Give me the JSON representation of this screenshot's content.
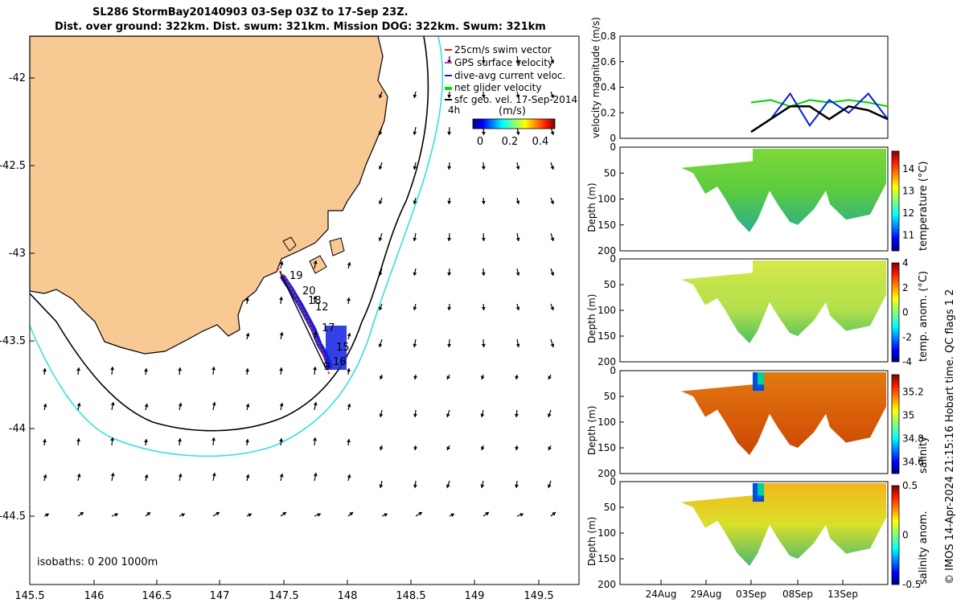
{
  "title_line1": "SL286 StormBay20140903 03-Sep 03Z to 17-Sep 23Z.",
  "title_line2": "Dist. over ground: 322km. Dist. swum: 321km. Mission DOG: 322km. Swum: 321km",
  "credit": "© IMOS 14-Apr-2024 21:15:16 Hobart time. QC flags 1  2",
  "map": {
    "xticks": [
      "145.5",
      "146",
      "146.5",
      "147",
      "147.5",
      "148",
      "148.5",
      "149",
      "149.5"
    ],
    "yticks": [
      "-42",
      "-42.5",
      "-43",
      "-43.5",
      "-44",
      "-44.5"
    ],
    "legend": [
      "25cm/s swim vector",
      "GPS surface velocity",
      "dive-avg current veloc.",
      "net glider velocity",
      "sfc geo. vel. 17-Sep-2014"
    ],
    "legend_extra": "4h",
    "colorbar_label": "(m/s)",
    "colorbar_ticks": [
      "0",
      "0.2",
      "0.4"
    ],
    "isobaths": "isobaths: 0   200  1000m",
    "day_labels": [
      "19",
      "20",
      "18",
      "12",
      "17",
      "15",
      "16",
      "9"
    ],
    "colors": {
      "land": "#F9C994",
      "coast": "#000000",
      "isobath_1000": "#33E0E0",
      "isobath_200": "#000000",
      "track_red": "#E02020",
      "track_blue": "#1020E0",
      "arrows": "#000000"
    }
  },
  "panels": {
    "xticks": [
      "24Aug",
      "29Aug",
      "03Sep",
      "08Sep",
      "13Sep"
    ],
    "depth_label": "Depth (m)",
    "depth_ticks": [
      "0",
      "50",
      "100",
      "150",
      "200"
    ]
  },
  "chart_data": [
    {
      "type": "line",
      "ylabel": "velocity magnitude (m/s)",
      "ylim": [
        0,
        0.8
      ],
      "yticks": [
        "0",
        "0.2",
        "0.4",
        "0.6",
        "0.8"
      ],
      "x": [
        "03Sep",
        "05Sep",
        "07Sep",
        "09Sep",
        "11Sep",
        "13Sep",
        "15Sep",
        "17Sep"
      ],
      "series": [
        {
          "color": "#00D000",
          "values": [
            0.28,
            0.3,
            0.25,
            0.3,
            0.28,
            0.3,
            0.28,
            0.25
          ]
        },
        {
          "color": "#0020E0",
          "values": [
            0.05,
            0.15,
            0.35,
            0.1,
            0.3,
            0.2,
            0.35,
            0.15
          ]
        },
        {
          "color": "#000000",
          "values": [
            0.05,
            0.15,
            0.25,
            0.25,
            0.15,
            0.25,
            0.22,
            0.15
          ]
        }
      ]
    },
    {
      "type": "heatmap",
      "ylabel": "Depth (m)",
      "colorbar_label": "temperature (°C)",
      "colorbar_ticks": [
        "11",
        "12",
        "13",
        "14"
      ],
      "colorbar_range": [
        10.3,
        14.8
      ],
      "ylim": [
        200,
        0
      ]
    },
    {
      "type": "heatmap",
      "ylabel": "Depth (m)",
      "colorbar_label": "temp. anom. (°C)",
      "colorbar_ticks": [
        "-4",
        "-2",
        "0",
        "2",
        "4"
      ],
      "colorbar_range": [
        -4,
        4
      ],
      "ylim": [
        200,
        0
      ]
    },
    {
      "type": "heatmap",
      "ylabel": "Depth (m)",
      "colorbar_label": "salinity",
      "colorbar_ticks": [
        "34.6",
        "34.8",
        "35",
        "35.2"
      ],
      "colorbar_range": [
        34.5,
        35.35
      ],
      "ylim": [
        200,
        0
      ]
    },
    {
      "type": "heatmap",
      "ylabel": "Depth (m)",
      "colorbar_label": "salinity anom.",
      "colorbar_ticks": [
        "-0.5",
        "0",
        "0.5"
      ],
      "colorbar_range": [
        -0.5,
        0.5
      ],
      "ylim": [
        200,
        0
      ]
    }
  ]
}
